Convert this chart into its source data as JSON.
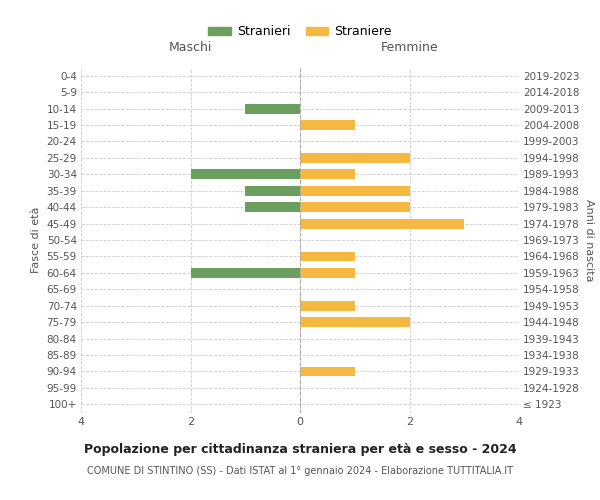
{
  "age_groups": [
    "100+",
    "95-99",
    "90-94",
    "85-89",
    "80-84",
    "75-79",
    "70-74",
    "65-69",
    "60-64",
    "55-59",
    "50-54",
    "45-49",
    "40-44",
    "35-39",
    "30-34",
    "25-29",
    "20-24",
    "15-19",
    "10-14",
    "5-9",
    "0-4"
  ],
  "birth_years": [
    "≤ 1923",
    "1924-1928",
    "1929-1933",
    "1934-1938",
    "1939-1943",
    "1944-1948",
    "1949-1953",
    "1954-1958",
    "1959-1963",
    "1964-1968",
    "1969-1973",
    "1974-1978",
    "1979-1983",
    "1984-1988",
    "1989-1993",
    "1994-1998",
    "1999-2003",
    "2004-2008",
    "2009-2013",
    "2014-2018",
    "2019-2023"
  ],
  "maschi_stranieri": [
    0,
    0,
    0,
    0,
    0,
    0,
    0,
    0,
    2,
    0,
    0,
    0,
    1,
    1,
    2,
    0,
    0,
    0,
    1,
    0,
    0
  ],
  "femmine_straniere": [
    0,
    0,
    1,
    0,
    0,
    2,
    1,
    0,
    1,
    1,
    0,
    3,
    2,
    2,
    1,
    2,
    0,
    1,
    0,
    0,
    0
  ],
  "color_maschi": "#6a9f5e",
  "color_femmine": "#f5b942",
  "grid_color": "#cccccc",
  "title": "Popolazione per cittadinanza straniera per età e sesso - 2024",
  "subtitle": "COMUNE DI STINTINO (SS) - Dati ISTAT al 1° gennaio 2024 - Elaborazione TUTTITALIA.IT",
  "xlabel_left": "Maschi",
  "xlabel_right": "Femmine",
  "ylabel_left": "Fasce di età",
  "ylabel_right": "Anni di nascita",
  "legend_stranieri": "Stranieri",
  "legend_straniere": "Straniere",
  "xlim": 4
}
